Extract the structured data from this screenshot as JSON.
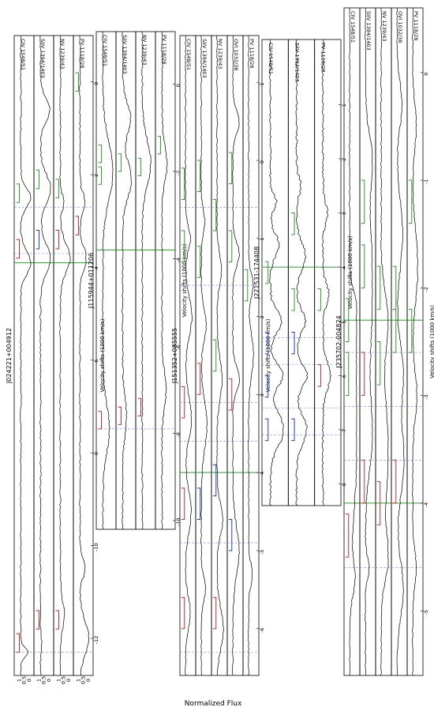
{
  "figure": {
    "ylabel": "Normalized Flux",
    "xlabel": "Velocity shifts (1000 km/s)"
  },
  "colors": {
    "spectrum": "#000000",
    "system_red": "#d62728",
    "system_green": "#2ca02c",
    "system_blue": "#1f3fd6",
    "dashed": "#8080ff",
    "vline": "#2ca02c"
  },
  "chart_data": [
    {
      "type": "line",
      "object": "J024221+004912",
      "x_ticks": [
        -12,
        -10,
        -8,
        -6,
        -4,
        -2,
        0
      ],
      "x_range": [
        -12.8,
        1.0
      ],
      "y_ticks": [
        "0",
        "0.5",
        "1"
      ],
      "y_range": [
        0,
        1.35
      ],
      "vlines": [
        -3.9
      ],
      "dashed": [
        -12.3,
        -3.7,
        -2.7
      ],
      "panels": [
        {
          "ion": "CIV 1548/51",
          "troughs": [
            [
              -12.3,
              0.25,
              0.2
            ],
            [
              -3.9,
              0.0,
              0.5
            ],
            [
              -2.5,
              0.0,
              0.4
            ]
          ],
          "brackets": [
            {
              "v": -12.3,
              "c": "red",
              "lev": 1.15
            },
            {
              "v": -3.8,
              "c": "red",
              "lev": 1.15
            },
            {
              "v": -2.6,
              "c": "green",
              "lev": 1.15
            }
          ]
        },
        {
          "ion": "SiIV 1394/1403",
          "troughs": [
            [
              -12.0,
              0.9,
              0.3
            ],
            [
              -3.8,
              0.0,
              0.6
            ],
            [
              -2.3,
              0.0,
              0.6
            ],
            [
              -0.6,
              0.05,
              0.5
            ]
          ],
          "brackets": [
            {
              "v": -11.8,
              "c": "red",
              "lev": 1.15
            },
            {
              "v": -3.6,
              "c": "blue",
              "lev": 1.15
            },
            {
              "v": -2.3,
              "c": "green",
              "lev": 1.15
            }
          ]
        },
        {
          "ion": "NV 1239/43",
          "troughs": [
            [
              -11.5,
              0.6,
              0.6
            ],
            [
              -3.8,
              0.0,
              0.6
            ],
            [
              -2.6,
              0.6,
              0.3
            ]
          ],
          "brackets": [
            {
              "v": -11.8,
              "c": "red",
              "lev": 1.15
            },
            {
              "v": -3.6,
              "c": "red",
              "lev": 1.15
            },
            {
              "v": -2.5,
              "c": "green",
              "lev": 1.15
            }
          ]
        },
        {
          "ion": "PV 1118/28",
          "troughs": [
            [
              -12.0,
              0.1,
              0.7
            ],
            [
              -10.5,
              0.5,
              0.4
            ],
            [
              -3.8,
              0.4,
              0.5
            ],
            [
              -2.6,
              0.5,
              0.4
            ]
          ],
          "brackets": [
            {
              "v": -3.3,
              "c": "red",
              "lev": 1.15
            },
            {
              "v": -0.2,
              "c": "green",
              "lev": 1.15
            }
          ]
        }
      ]
    },
    {
      "type": "line",
      "object": "J115944+011206",
      "x_ticks": [
        -10,
        -8,
        -6,
        -4,
        -2,
        0
      ],
      "x_range": [
        -10.2,
        1.2
      ],
      "y_ticks": [],
      "y_range": [
        0,
        1.35
      ],
      "vlines": [
        -3.8
      ],
      "dashed": [
        -7.9
      ],
      "panels": [
        {
          "ion": "CIV 1548/51",
          "troughs": [
            [
              -7.9,
              0.35,
              1.1
            ],
            [
              -2.0,
              0.0,
              1.3
            ]
          ],
          "brackets": [
            {
              "v": -7.9,
              "c": "red",
              "lev": 1.15
            },
            {
              "v": -2.3,
              "c": "green",
              "lev": 1.15
            },
            {
              "v": -1.8,
              "c": "green",
              "lev": 1.15
            }
          ]
        },
        {
          "ion": "SiIV 1394/1403",
          "troughs": [
            [
              -7.6,
              0.6,
              0.9
            ],
            [
              -2.2,
              0.1,
              0.8
            ],
            [
              -0.8,
              0.2,
              0.7
            ]
          ],
          "brackets": [
            {
              "v": -7.8,
              "c": "red",
              "lev": 1.15
            },
            {
              "v": -2.0,
              "c": "green",
              "lev": 1.15
            }
          ]
        },
        {
          "ion": "NV 1239/43",
          "troughs": [
            [
              -1.8,
              0.15,
              1.0
            ]
          ],
          "brackets": [
            {
              "v": -7.6,
              "c": "red",
              "lev": 1.15
            },
            {
              "v": -2.1,
              "c": "green",
              "lev": 1.15
            }
          ]
        },
        {
          "ion": "PV 1118/28",
          "troughs": [
            [
              -7.0,
              0.6,
              0.8
            ],
            [
              -1.8,
              0.5,
              0.8
            ]
          ],
          "brackets": [
            {
              "v": -1.6,
              "c": "green",
              "lev": 1.15
            }
          ]
        }
      ]
    },
    {
      "type": "line",
      "object": "J151352+085555",
      "x_ticks": [
        -6,
        -5,
        -4,
        -3,
        -2,
        -1,
        0,
        1
      ],
      "x_range": [
        -6.6,
        1.6
      ],
      "y_ticks": [],
      "y_range": [
        0,
        1.35
      ],
      "vlines": [
        -4.0
      ],
      "dashed": [
        -6.3,
        -4.9,
        -3.6,
        -3.1,
        -1.6,
        -0.6
      ],
      "panels": [
        {
          "ion": "CIV 1548/51",
          "troughs": [
            [
              -5.8,
              0.3,
              0.4
            ],
            [
              -4.5,
              0.2,
              0.5
            ],
            [
              -3.3,
              0.15,
              0.5
            ],
            [
              -2.0,
              0.1,
              0.5
            ],
            [
              -1.0,
              0.3,
              0.3
            ]
          ],
          "brackets": [
            {
              "v": -6.0,
              "c": "red",
              "lev": 1.15
            },
            {
              "v": -4.6,
              "c": "red",
              "lev": 1.15
            },
            {
              "v": -3.3,
              "c": "red",
              "lev": 1.15
            },
            {
              "v": -1.3,
              "c": "green",
              "lev": 1.15
            },
            {
              "v": -0.5,
              "c": "green",
              "lev": 1.15
            }
          ]
        },
        {
          "ion": "SiIV 1394/1403",
          "troughs": [
            [
              -5.5,
              0.4,
              0.3
            ],
            [
              -3.4,
              0.2,
              0.6
            ],
            [
              -2.1,
              0.3,
              0.4
            ],
            [
              -0.8,
              0.5,
              0.3
            ]
          ],
          "brackets": [
            {
              "v": -4.6,
              "c": "blue",
              "lev": 1.15
            },
            {
              "v": -3.0,
              "c": "red",
              "lev": 1.15
            },
            {
              "v": -1.5,
              "c": "green",
              "lev": 1.15
            },
            {
              "v": -0.4,
              "c": "green",
              "lev": 1.15
            }
          ]
        },
        {
          "ion": "NV 1239/43",
          "troughs": [
            [
              -6.0,
              0.1,
              0.5
            ],
            [
              -4.6,
              0.2,
              0.4
            ],
            [
              -2.8,
              0.3,
              0.5
            ],
            [
              -1.4,
              0.4,
              0.4
            ]
          ],
          "brackets": [
            {
              "v": -6.0,
              "c": "red",
              "lev": 1.15
            },
            {
              "v": -4.3,
              "c": "blue",
              "lev": 1.15
            },
            {
              "v": -2.7,
              "c": "green",
              "lev": 1.15
            },
            {
              "v": -0.9,
              "c": "green",
              "lev": 1.15
            }
          ]
        },
        {
          "ion": "OVI 1032/38",
          "troughs": [
            [
              -5.0,
              0.1,
              0.6
            ],
            [
              -2.8,
              0.05,
              0.3
            ],
            [
              -1.2,
              0.1,
              0.3
            ],
            [
              0.5,
              0.1,
              0.3
            ]
          ],
          "brackets": [
            {
              "v": -5.0,
              "c": "blue",
              "lev": 1.15
            },
            {
              "v": -3.2,
              "c": "red",
              "lev": 1.15
            },
            {
              "v": -1.3,
              "c": "green",
              "lev": 1.15
            },
            {
              "v": -0.3,
              "c": "green",
              "lev": 1.15
            }
          ]
        },
        {
          "ion": "PV 1118/28",
          "troughs": [
            [
              -5.3,
              0.5,
              0.3
            ],
            [
              -2.5,
              0.3,
              0.5
            ],
            [
              -1.6,
              0.35,
              0.3
            ]
          ],
          "brackets": [
            {
              "v": -1.8,
              "c": "green",
              "lev": 1.15
            }
          ]
        }
      ]
    },
    {
      "type": "line",
      "object": "J221531-174408",
      "x_ticks": [
        -8,
        -7,
        -6,
        -5,
        -4,
        -3,
        -2,
        -1
      ],
      "x_range": [
        -8.4,
        0.2
      ],
      "y_ticks": [],
      "y_range": [
        0,
        1.35
      ],
      "vlines": [
        -4.0
      ],
      "dashed": [
        -7.1,
        -6.6,
        -5.8,
        -5.3
      ],
      "panels": [
        {
          "ion": "CIV 1548/51",
          "troughs": [
            [
              -7.0,
              0.1,
              0.6
            ],
            [
              -6.0,
              0.15,
              0.4
            ],
            [
              -5.0,
              0.25,
              0.4
            ],
            [
              -3.6,
              0.4,
              0.4
            ],
            [
              -2.8,
              0.6,
              0.3
            ]
          ],
          "brackets": [
            {
              "v": -7.2,
              "c": "blue",
              "lev": 1.15
            },
            {
              "v": -6.4,
              "c": "blue",
              "lev": 1.15
            },
            {
              "v": -5.6,
              "c": "blue",
              "lev": 1.15
            },
            {
              "v": -4.3,
              "c": "green",
              "lev": 1.15
            }
          ]
        },
        {
          "ion": "SiIV 1394/1403",
          "troughs": [
            [
              -7.0,
              0.3,
              0.5
            ],
            [
              -6.0,
              0.3,
              0.4
            ],
            [
              -5.0,
              0.4,
              0.4
            ],
            [
              -3.8,
              0.4,
              0.5
            ],
            [
              -2.5,
              0.7,
              0.3
            ]
          ],
          "brackets": [
            {
              "v": -7.2,
              "c": "blue",
              "lev": 1.15
            },
            {
              "v": -5.6,
              "c": "blue",
              "lev": 1.15
            },
            {
              "v": -4.8,
              "c": "green",
              "lev": 1.15
            },
            {
              "v": -3.4,
              "c": "green",
              "lev": 1.15
            }
          ]
        },
        {
          "ion": "PV 1118/28",
          "troughs": [
            [
              -6.0,
              0.5,
              0.5
            ],
            [
              -4.5,
              0.6,
              0.4
            ],
            [
              -3.0,
              0.7,
              0.4
            ]
          ],
          "brackets": [
            {
              "v": -6.2,
              "c": "red",
              "lev": 1.15
            },
            {
              "v": -4.8,
              "c": "green",
              "lev": 1.15
            }
          ]
        }
      ]
    },
    {
      "type": "line",
      "object": "J235702-004824",
      "x_ticks": [
        -5,
        -4,
        -3,
        -2,
        -1,
        0
      ],
      "x_range": [
        -5.6,
        0.6
      ],
      "y_ticks": [],
      "y_range": [
        0,
        1.35
      ],
      "vlines": [
        -4.0,
        -2.3
      ],
      "dashed": [
        -4.6,
        -3.6,
        -3.1,
        -2.6
      ],
      "panels": [
        {
          "ion": "CIV 1548/51",
          "troughs": [
            [
              -4.7,
              0.35,
              0.3
            ],
            [
              -3.5,
              0.0,
              1.2
            ],
            [
              -2.8,
              0.0,
              0.6
            ],
            [
              -2.2,
              0.05,
              0.3
            ]
          ],
          "brackets": [
            {
              "v": -4.5,
              "c": "red",
              "lev": 1.15
            },
            {
              "v": -3.0,
              "c": "green",
              "lev": 1.15
            },
            {
              "v": -2.5,
              "c": "green",
              "lev": 1.15
            }
          ]
        },
        {
          "ion": "SiIV 1394/1403",
          "troughs": [
            [
              -4.6,
              0.5,
              0.2
            ],
            [
              -3.4,
              0.15,
              0.6
            ],
            [
              -2.0,
              0.0,
              1.5
            ],
            [
              -0.8,
              0.2,
              0.4
            ]
          ],
          "brackets": [
            {
              "v": -4.0,
              "c": "red",
              "lev": 1.15
            },
            {
              "v": -3.0,
              "c": "red",
              "lev": 1.15
            },
            {
              "v": -2.0,
              "c": "green",
              "lev": 1.15
            },
            {
              "v": -1.4,
              "c": "green",
              "lev": 1.15
            }
          ]
        },
        {
          "ion": "NV 1239/43",
          "troughs": [
            [
              -4.5,
              0.05,
              0.4
            ],
            [
              -3.5,
              0.0,
              1.0
            ],
            [
              -2.3,
              0.05,
              0.5
            ]
          ],
          "brackets": [
            {
              "v": -4.2,
              "c": "red",
              "lev": 1.15
            },
            {
              "v": -2.9,
              "c": "green",
              "lev": 1.15
            },
            {
              "v": -2.2,
              "c": "green",
              "lev": 1.15
            }
          ]
        },
        {
          "ion": "OVI 1032/38",
          "troughs": [
            [
              -4.8,
              0.1,
              0.5
            ],
            [
              -3.6,
              0.0,
              0.6
            ],
            [
              -2.8,
              0.1,
              0.5
            ],
            [
              -1.5,
              0.2,
              0.6
            ],
            [
              -0.3,
              0.3,
              0.4
            ]
          ],
          "brackets": [
            {
              "v": -4.0,
              "c": "red",
              "lev": 1.15
            },
            {
              "v": -2.6,
              "c": "green",
              "lev": 1.15
            },
            {
              "v": -2.2,
              "c": "green",
              "lev": 1.15
            }
          ]
        },
        {
          "ion": "PV 1118/28",
          "troughs": [
            [
              -4.6,
              0.5,
              0.3
            ],
            [
              -3.0,
              0.4,
              0.4
            ],
            [
              -1.8,
              0.3,
              0.6
            ],
            [
              -0.5,
              0.5,
              0.4
            ]
          ],
          "brackets": [
            {
              "v": -2.6,
              "c": "green",
              "lev": 1.15
            },
            {
              "v": -1.4,
              "c": "green",
              "lev": 1.15
            }
          ]
        }
      ]
    }
  ]
}
